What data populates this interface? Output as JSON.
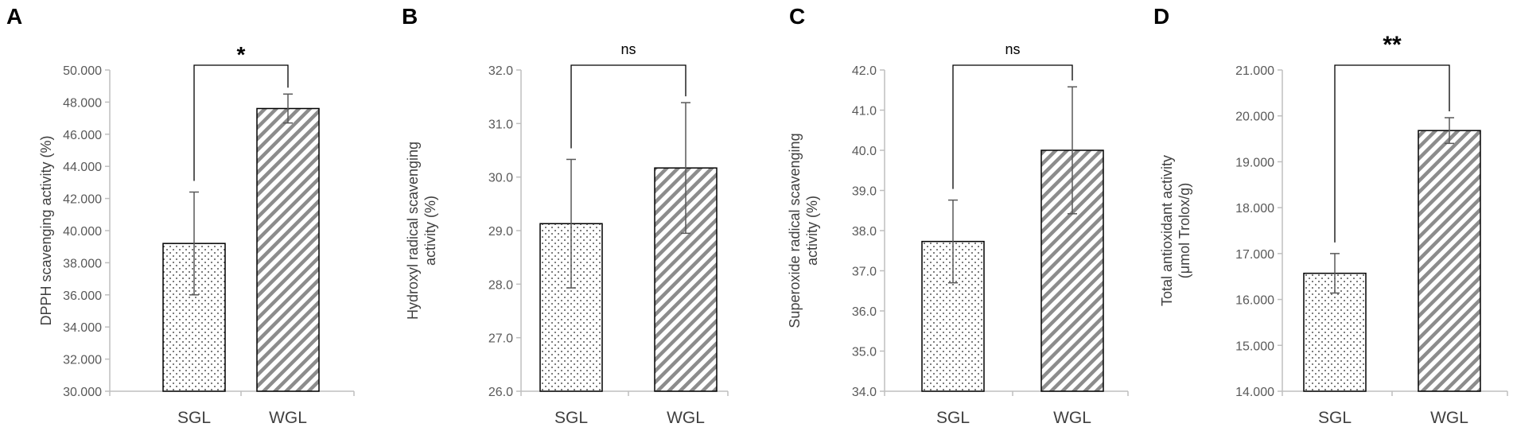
{
  "figure": {
    "colors": {
      "axis": "#bfbfbf",
      "bar_edge": "#000000",
      "dots": "#555555",
      "stripes": "#8c8c8c",
      "error": "#595959",
      "text": "#404040"
    }
  },
  "chart_data": [
    {
      "type": "bar",
      "panel": "A",
      "categories": [
        "SGL",
        "WGL"
      ],
      "values": [
        39.2,
        47.6
      ],
      "errors": [
        3.2,
        0.9
      ],
      "ylabel_lines": [
        "DPPH scavenging activity  (%)"
      ],
      "ylim": [
        30,
        50
      ],
      "ticks": [
        "30.000",
        "32.000",
        "34.000",
        "36.000",
        "38.000",
        "40.000",
        "42.000",
        "44.000",
        "46.000",
        "48.000",
        "50.000"
      ],
      "significance": "*",
      "sig_size": 28
    },
    {
      "type": "bar",
      "panel": "B",
      "categories": [
        "SGL",
        "WGL"
      ],
      "values": [
        29.13,
        30.17
      ],
      "errors": [
        1.2,
        1.22
      ],
      "ylabel_lines": [
        "Hydroxyl radical scavenging",
        "activity (%)"
      ],
      "ylim": [
        26,
        32
      ],
      "ticks": [
        "26.0",
        "27.0",
        "28.0",
        "29.0",
        "30.0",
        "31.0",
        "32.0"
      ],
      "significance": "ns",
      "sig_size": 18
    },
    {
      "type": "bar",
      "panel": "C",
      "categories": [
        "SGL",
        "WGL"
      ],
      "values": [
        37.73,
        40.0
      ],
      "errors": [
        1.03,
        1.58
      ],
      "ylabel_lines": [
        "Superoxide radical scavenging",
        "activity (%)"
      ],
      "ylim": [
        34,
        42
      ],
      "ticks": [
        "34.0",
        "35.0",
        "36.0",
        "37.0",
        "38.0",
        "39.0",
        "40.0",
        "41.0",
        "42.0"
      ],
      "significance": "ns",
      "sig_size": 18
    },
    {
      "type": "bar",
      "panel": "D",
      "categories": [
        "SGL",
        "WGL"
      ],
      "values": [
        16.57,
        19.68
      ],
      "errors": [
        0.43,
        0.28
      ],
      "ylabel_lines": [
        "Total antioxidant activity",
        "(μmol Trolox/g)"
      ],
      "ylim": [
        14,
        21
      ],
      "ticks": [
        "14.000",
        "15.000",
        "16.000",
        "17.000",
        "18.000",
        "19.000",
        "20.000",
        "21.000"
      ],
      "significance": "**",
      "sig_size": 30
    }
  ]
}
